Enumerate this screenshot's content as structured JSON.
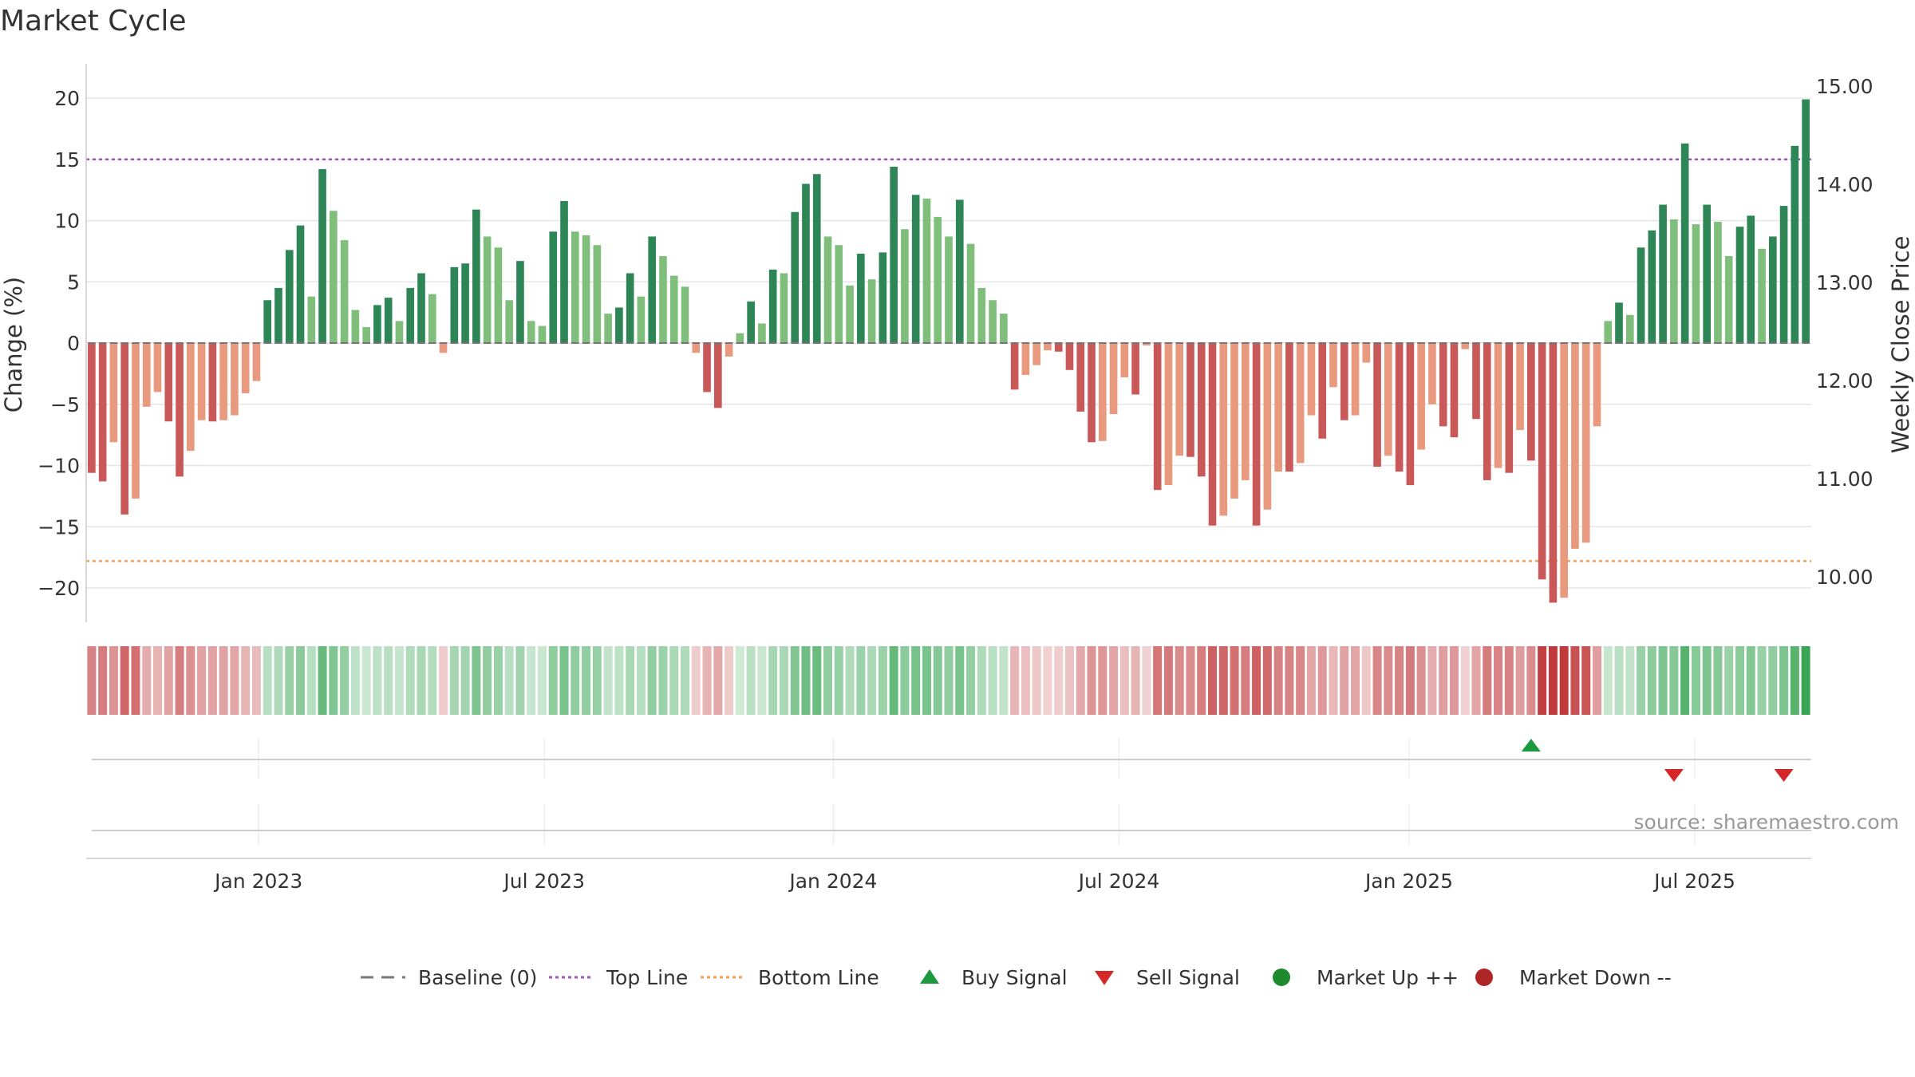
{
  "chart_data": {
    "type": "bar",
    "title": "Market Cycle",
    "ylabel": "Change (%)",
    "y2label": "Weekly Close Price",
    "ylim": [
      -23,
      23
    ],
    "y2lim": [
      9.6,
      15.1
    ],
    "yticks": [
      20,
      15,
      10,
      5,
      0,
      -5,
      -10,
      -15,
      -20
    ],
    "ytick_labels": [
      "20",
      "15",
      "10",
      "5",
      "0",
      "−5",
      "−10",
      "−15",
      "−20"
    ],
    "y2ticks": [
      15.0,
      14.0,
      13.0,
      12.0,
      11.0,
      10.0
    ],
    "y2tick_labels": [
      "15.00",
      "14.00",
      "13.00",
      "12.00",
      "11.00",
      "10.00"
    ],
    "xticks": [
      {
        "label": "Jan 2023",
        "index": 15.2
      },
      {
        "label": "Jul 2023",
        "index": 41.2
      },
      {
        "label": "Jan 2024",
        "index": 67.5
      },
      {
        "label": "Jul 2024",
        "index": 93.5
      },
      {
        "label": "Jan 2025",
        "index": 119.9
      },
      {
        "label": "Jul 2025",
        "index": 145.9
      }
    ],
    "top_line": 15,
    "bottom_line": -17.8,
    "grid": true,
    "legend_position": "bottom-center",
    "source": "source: sharemaestro.com",
    "values": [
      -10.6,
      -11.3,
      -8.1,
      -14.0,
      -12.7,
      -5.2,
      -4.0,
      -6.4,
      -10.9,
      -8.8,
      -6.3,
      -6.4,
      -6.3,
      -5.9,
      -4.1,
      -3.1,
      3.5,
      4.5,
      7.6,
      9.6,
      3.8,
      14.2,
      10.8,
      8.4,
      2.7,
      1.3,
      3.1,
      3.7,
      1.8,
      4.5,
      5.7,
      4.0,
      -0.8,
      6.2,
      6.5,
      10.9,
      8.7,
      7.8,
      3.5,
      6.7,
      1.8,
      1.4,
      9.1,
      11.6,
      9.1,
      8.8,
      8.0,
      2.4,
      2.9,
      5.7,
      3.8,
      8.7,
      7.1,
      5.5,
      4.6,
      -0.8,
      -4.0,
      -5.3,
      -1.1,
      0.8,
      3.4,
      1.6,
      6.0,
      5.7,
      10.7,
      13.0,
      13.8,
      8.7,
      8.0,
      4.7,
      7.3,
      5.2,
      7.4,
      14.4,
      9.3,
      12.1,
      11.8,
      10.3,
      8.7,
      11.7,
      8.1,
      4.5,
      3.5,
      2.4,
      -3.8,
      -2.6,
      -1.8,
      -0.6,
      -0.7,
      -2.2,
      -5.6,
      -8.1,
      -8.0,
      -5.8,
      -2.8,
      -4.2,
      -0.2,
      -12.0,
      -11.6,
      -9.2,
      -9.3,
      -10.9,
      -14.9,
      -14.1,
      -12.7,
      -11.2,
      -14.9,
      -13.6,
      -10.5,
      -10.5,
      -9.8,
      -5.9,
      -7.8,
      -3.6,
      -6.3,
      -5.9,
      -1.6,
      -10.1,
      -9.2,
      -10.5,
      -11.6,
      -8.7,
      -5.0,
      -6.8,
      -7.7,
      -0.5,
      -6.2,
      -11.2,
      -10.2,
      -10.6,
      -7.1,
      -9.6,
      -19.3,
      -21.2,
      -20.8,
      -16.8,
      -16.3,
      -6.8,
      1.8,
      3.3,
      2.3,
      7.8,
      9.2,
      11.3,
      10.1,
      16.3,
      9.7,
      11.3,
      9.9,
      7.1,
      9.5,
      10.4,
      7.7,
      8.7,
      11.2,
      16.1,
      19.9
    ],
    "series": [
      {
        "name": "Baseline (0)",
        "value": 0
      },
      {
        "name": "Top Line",
        "value": 15
      },
      {
        "name": "Bottom Line",
        "value": -17.8
      }
    ],
    "signals": [
      {
        "type": "buy",
        "index": 131
      },
      {
        "type": "sell",
        "index": 144
      },
      {
        "type": "sell",
        "index": 154
      }
    ],
    "colors": {
      "strong_up": "#2e8555",
      "weak_up": "#7fbf7b",
      "strong_down": "#c95859",
      "weak_down": "#e8997e",
      "top_line": "#9b59b6",
      "bottom_line": "#f0a35e",
      "baseline": "#777777",
      "buy": "#1a9a3c",
      "sell": "#d62728",
      "market_up": "#1e8a2e",
      "market_down": "#b02525"
    }
  },
  "legend": [
    {
      "label": "Baseline (0)",
      "marker": "dash",
      "color": "#777777"
    },
    {
      "label": "Top Line",
      "marker": "dotted",
      "color": "#9b59b6"
    },
    {
      "label": "Bottom Line",
      "marker": "dotted",
      "color": "#f0a35e"
    },
    {
      "label": "Buy Signal",
      "marker": "triangle-up",
      "color": "#1a9a3c"
    },
    {
      "label": "Sell Signal",
      "marker": "triangle-down",
      "color": "#d62728"
    },
    {
      "label": "Market Up ++",
      "marker": "circle",
      "color": "#1e8a2e"
    },
    {
      "label": "Market Down --",
      "marker": "circle",
      "color": "#b02525"
    }
  ]
}
